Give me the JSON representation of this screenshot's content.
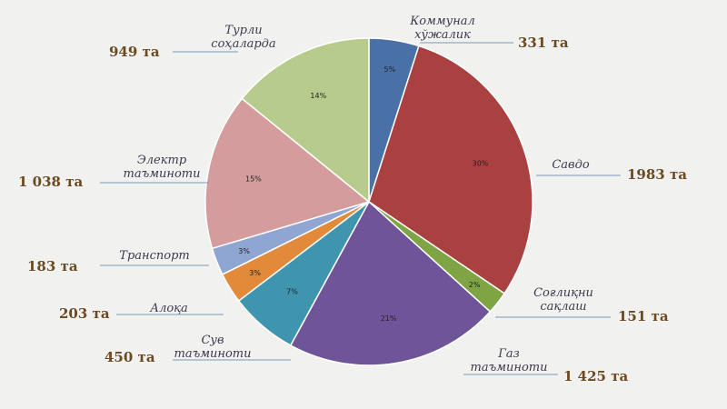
{
  "chart_data": {
    "type": "pie",
    "title": "",
    "slices": [
      {
        "label": [
          "Коммунал",
          "хўжалик"
        ],
        "count": "331 та",
        "percent": "5%",
        "value": 331,
        "color": "#4a70a8"
      },
      {
        "label": [
          "Савдо"
        ],
        "count": "1983 та",
        "percent": "30%",
        "value": 1983,
        "color": "#a84140"
      },
      {
        "label": [
          "Соғлиқни",
          "сақлаш"
        ],
        "count": "151 та",
        "percent": "2%",
        "value": 151,
        "color": "#7fa444"
      },
      {
        "label": [
          "Газ",
          "таъминоти"
        ],
        "count": "1 425 та",
        "percent": "21%",
        "value": 1425,
        "color": "#6f5499"
      },
      {
        "label": [
          "Сув",
          "таъминоти"
        ],
        "count": "450 та",
        "percent": "7%",
        "value": 450,
        "color": "#3f95ad"
      },
      {
        "label": [
          "Алоқа"
        ],
        "count": "203 та",
        "percent": "3%",
        "value": 203,
        "color": "#e38a3a"
      },
      {
        "label": [
          "Транспорт"
        ],
        "count": "183 та",
        "percent": "3%",
        "value": 183,
        "color": "#8fa6d2"
      },
      {
        "label": [
          "Электр",
          "таъминоти"
        ],
        "count": "1 038 та",
        "percent": "15%",
        "value": 1038,
        "color": "#d49c9d"
      },
      {
        "label": [
          "Турли",
          "соҳаларда"
        ],
        "count": "949 та",
        "percent": "14%",
        "value": 949,
        "color": "#b7cc8c"
      }
    ]
  }
}
